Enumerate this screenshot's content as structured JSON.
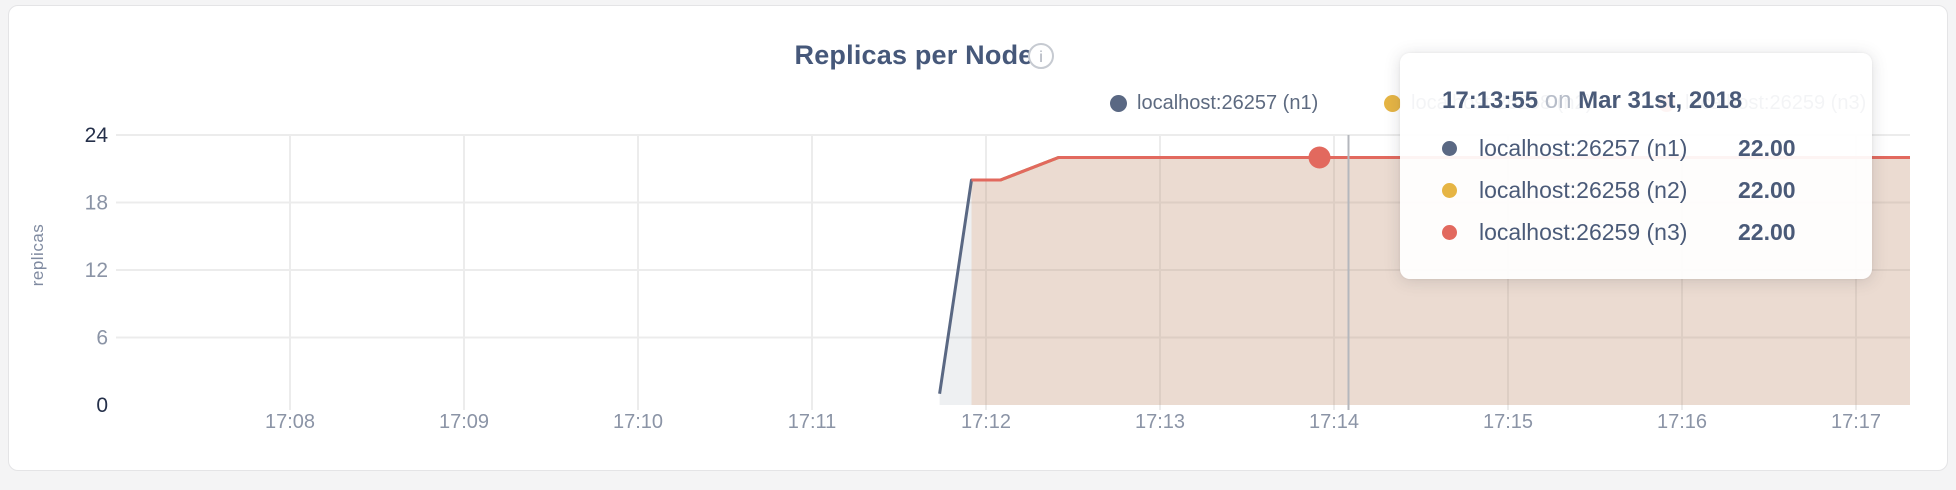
{
  "page": {
    "title": "Replicas per Node",
    "info_icon": "i",
    "y_axis_title": "replicas"
  },
  "colors": {
    "title_text": "#46587a",
    "axis_tick_muted": "#8b94a6",
    "axis_tick_strong": "#25304a",
    "gridline": "#ececec",
    "guideline": "#b4b7bd",
    "series_n1": "#5a6883",
    "series_n2": "#e6b544",
    "series_n3": "#e2695e",
    "card_background": "#ffffff",
    "page_background": "#f4f4f5"
  },
  "legend": {
    "items": [
      {
        "label": "localhost:26257 (n1)",
        "color": "#5a6883"
      },
      {
        "label": "localhost:26258 (n2)",
        "color": "#e6b544"
      },
      {
        "label": "localhost:26259 (n3)",
        "color": "#e2695e"
      }
    ]
  },
  "tooltip": {
    "time": "17:13:55",
    "on_word": "on",
    "date": "Mar 31st, 2018",
    "rows": [
      {
        "label": "localhost:26257 (n1)",
        "value": "22.00",
        "color": "#5a6883"
      },
      {
        "label": "localhost:26258 (n2)",
        "value": "22.00",
        "color": "#e6b544"
      },
      {
        "label": "localhost:26259 (n3)",
        "value": "22.00",
        "color": "#e2695e"
      }
    ]
  },
  "chart_data": {
    "type": "area",
    "title": "Replicas per Node",
    "xlabel": "",
    "ylabel": "replicas",
    "ylim": [
      0,
      24
    ],
    "y_ticks": [
      0,
      6,
      12,
      18,
      24
    ],
    "y_ticks_strong": [
      0,
      24
    ],
    "x_ticks": [
      "17:08",
      "17:09",
      "17:10",
      "17:11",
      "17:12",
      "17:13",
      "17:14",
      "17:15",
      "17:16",
      "17:17"
    ],
    "x_range": [
      "17:07:00",
      "17:17:19"
    ],
    "grid": true,
    "legend_position": "top-right",
    "series": [
      {
        "name": "localhost:26257 (n1)",
        "color": "#5a6883",
        "fill": "rgba(90,104,131,0.10)",
        "points": [
          [
            "17:11:44",
            1
          ],
          [
            "17:11:55",
            20
          ],
          [
            "17:12:05",
            20
          ],
          [
            "17:12:25",
            22
          ],
          [
            "17:17:19",
            22
          ]
        ]
      },
      {
        "name": "localhost:26258 (n2)",
        "color": "#e6b544",
        "fill": "rgba(230,181,68,0.10)",
        "points": [
          [
            "17:11:55",
            20
          ],
          [
            "17:12:05",
            20
          ],
          [
            "17:12:25",
            22
          ],
          [
            "17:17:19",
            22
          ]
        ]
      },
      {
        "name": "localhost:26259 (n3)",
        "color": "#e2695e",
        "fill": "rgba(226,105,94,0.11)",
        "points": [
          [
            "17:11:55",
            20
          ],
          [
            "17:12:05",
            20
          ],
          [
            "17:12:25",
            22
          ],
          [
            "17:17:19",
            22
          ]
        ]
      }
    ],
    "hover": {
      "point_time": "17:13:55",
      "point_value": 22,
      "point_series": "localhost:26259 (n3)",
      "point_color": "#e2695e",
      "guideline_time": "17:14:05"
    }
  }
}
